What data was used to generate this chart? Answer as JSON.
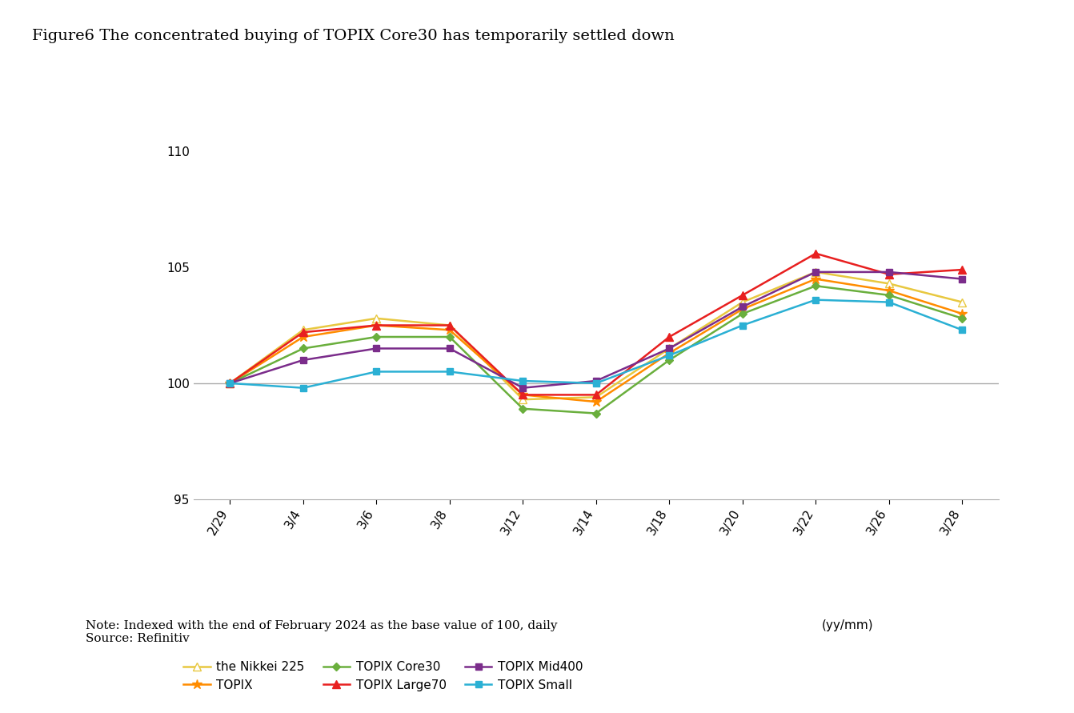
{
  "title": "Figure6 The concentrated buying of TOPIX Core30 has temporarily settled down",
  "x_labels": [
    "2/29",
    "3/4",
    "3/6",
    "3/8",
    "3/12",
    "3/14",
    "3/18",
    "3/20",
    "3/22",
    "3/26",
    "3/28"
  ],
  "series_order": [
    "the Nikkei 225",
    "TOPIX",
    "TOPIX Core30",
    "TOPIX Large70",
    "TOPIX Mid400",
    "TOPIX Small"
  ],
  "series": {
    "the Nikkei 225": {
      "color": "#E8C840",
      "marker": "^",
      "markerfacecolor": "white",
      "markeredgecolor": "#E8C840",
      "values": [
        100.0,
        102.3,
        102.8,
        102.5,
        99.3,
        99.4,
        101.5,
        103.5,
        104.8,
        104.3,
        103.5
      ]
    },
    "TOPIX": {
      "color": "#FF8C00",
      "marker": "*",
      "markerfacecolor": "#FF8C00",
      "markeredgecolor": "#FF8C00",
      "values": [
        100.0,
        102.0,
        102.5,
        102.3,
        99.5,
        99.2,
        101.3,
        103.2,
        104.5,
        104.0,
        103.0
      ]
    },
    "TOPIX Core30": {
      "color": "#6AAF3D",
      "marker": "D",
      "markerfacecolor": "#6AAF3D",
      "markeredgecolor": "#6AAF3D",
      "values": [
        100.0,
        101.5,
        102.0,
        102.0,
        98.9,
        98.7,
        101.0,
        103.0,
        104.2,
        103.8,
        102.8
      ]
    },
    "TOPIX Large70": {
      "color": "#E82020",
      "marker": "^",
      "markerfacecolor": "#E82020",
      "markeredgecolor": "#E82020",
      "values": [
        100.0,
        102.2,
        102.5,
        102.5,
        99.5,
        99.5,
        102.0,
        103.8,
        105.6,
        104.7,
        104.9
      ]
    },
    "TOPIX Mid400": {
      "color": "#7B2D8B",
      "marker": "s",
      "markerfacecolor": "#7B2D8B",
      "markeredgecolor": "#7B2D8B",
      "values": [
        100.0,
        101.0,
        101.5,
        101.5,
        99.8,
        100.1,
        101.5,
        103.3,
        104.8,
        104.8,
        104.5
      ]
    },
    "TOPIX Small": {
      "color": "#2BB0D4",
      "marker": "s",
      "markerfacecolor": "#2BB0D4",
      "markeredgecolor": "#2BB0D4",
      "values": [
        100.0,
        99.8,
        100.5,
        100.5,
        100.1,
        100.0,
        101.2,
        102.5,
        103.6,
        103.5,
        102.3
      ]
    }
  },
  "ylim": [
    95,
    111
  ],
  "yticks": [
    95,
    100,
    105,
    110
  ],
  "note": "Note: Indexed with the end of February 2024 as the base value of 100, daily\nSource: Refinitiv",
  "legend_label": "(yy/mm)"
}
